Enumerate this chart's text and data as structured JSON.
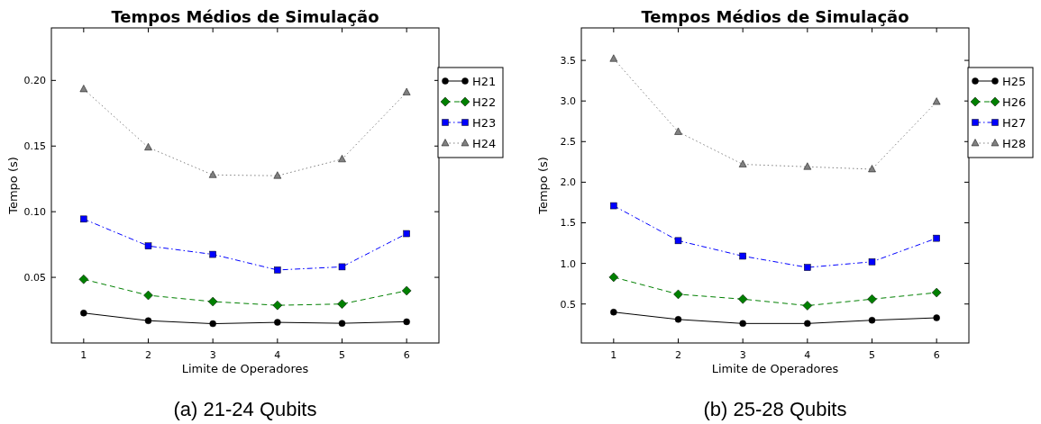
{
  "chart_data": [
    {
      "type": "line",
      "title": "Tempos Médios de Simulação",
      "xlabel": "Limite de Operadores",
      "ylabel": "Tempo (s)",
      "x": [
        1,
        2,
        3,
        4,
        5,
        6
      ],
      "xlim": [
        0.5,
        6.5
      ],
      "xticks": [
        1,
        2,
        3,
        4,
        5,
        6
      ],
      "ylim": [
        0,
        0.24
      ],
      "yticks": [
        0.05,
        {
          "value": 0.1,
          "label": "0.10"
        },
        0.15,
        {
          "value": 0.2,
          "label": "0.20"
        }
      ],
      "legend": "right",
      "annotations": [
        "(a) 21-24 Qubits"
      ],
      "series": [
        {
          "name": "H21",
          "color": "#000000",
          "marker": "circle",
          "line_style": "solid",
          "values": [
            0.0228,
            0.017,
            0.0147,
            0.0157,
            0.015,
            0.0162
          ]
        },
        {
          "name": "H22",
          "color": "#008000",
          "marker": "diamond",
          "line_style": "dashed",
          "values": [
            0.0485,
            0.0363,
            0.0315,
            0.0287,
            0.0297,
            0.0398
          ]
        },
        {
          "name": "H23",
          "color": "#0000ff",
          "marker": "square",
          "line_style": "dashdot",
          "values": [
            0.0944,
            0.0739,
            0.0675,
            0.0556,
            0.058,
            0.0833
          ]
        },
        {
          "name": "H24",
          "color": "#808080",
          "marker": "triangle",
          "line_style": "dotted",
          "values": [
            0.1934,
            0.149,
            0.128,
            0.1274,
            0.14,
            0.191
          ]
        }
      ]
    },
    {
      "type": "line",
      "title": "Tempos Médios de Simulação",
      "xlabel": "Limite de Operadores",
      "ylabel": "Tempo (s)",
      "x": [
        1,
        2,
        3,
        4,
        5,
        6
      ],
      "xlim": [
        0.5,
        6.5
      ],
      "xticks": [
        1,
        2,
        3,
        4,
        5,
        6
      ],
      "ylim": [
        0.02,
        3.9
      ],
      "yticks": [
        0.5,
        {
          "value": 1,
          "label": "1.0"
        },
        1.5,
        {
          "value": 2,
          "label": "2.0"
        },
        2.5,
        {
          "value": 3,
          "label": "3.0"
        },
        3.5
      ],
      "legend": "right",
      "annotations": [
        "(b) 25-28 Qubits"
      ],
      "series": [
        {
          "name": "H25",
          "color": "#000000",
          "marker": "circle",
          "line_style": "solid",
          "values": [
            0.4,
            0.31,
            0.26,
            0.26,
            0.3,
            0.33
          ]
        },
        {
          "name": "H26",
          "color": "#008000",
          "marker": "diamond",
          "line_style": "dashed",
          "values": [
            0.83,
            0.62,
            0.56,
            0.48,
            0.56,
            0.64
          ]
        },
        {
          "name": "H27",
          "color": "#0000ff",
          "marker": "square",
          "line_style": "dashdot",
          "values": [
            1.71,
            1.28,
            1.09,
            0.95,
            1.02,
            1.31
          ]
        },
        {
          "name": "H28",
          "color": "#808080",
          "marker": "triangle",
          "line_style": "dotted",
          "values": [
            3.52,
            2.62,
            2.22,
            2.19,
            2.16,
            2.99
          ]
        }
      ]
    }
  ]
}
